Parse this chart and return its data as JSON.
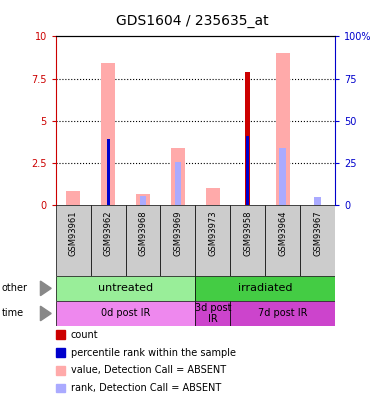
{
  "title": "GDS1604 / 235635_at",
  "samples": [
    "GSM93961",
    "GSM93962",
    "GSM93968",
    "GSM93969",
    "GSM93973",
    "GSM93958",
    "GSM93964",
    "GSM93967"
  ],
  "count_values": [
    0,
    0,
    0,
    0,
    0,
    7.9,
    0,
    0
  ],
  "percentile_rank_values": [
    0,
    39,
    0,
    0,
    0,
    41,
    0,
    0
  ],
  "value_absent_values": [
    0.85,
    8.4,
    0.65,
    3.4,
    1.0,
    0,
    9.0,
    0
  ],
  "rank_absent_values": [
    0,
    0,
    5.5,
    25.5,
    0,
    0,
    33.5,
    5.0
  ],
  "ylim": [
    0,
    10
  ],
  "y2lim": [
    0,
    100
  ],
  "yticks": [
    0,
    2.5,
    5,
    7.5,
    10
  ],
  "y2ticks": [
    0,
    25,
    50,
    75,
    100
  ],
  "ytick_labels": [
    "0",
    "2.5",
    "5",
    "7.5",
    "10"
  ],
  "y2tick_labels": [
    "0",
    "25",
    "50",
    "75",
    "100%"
  ],
  "color_count": "#cc0000",
  "color_rank": "#0000cc",
  "color_value_absent": "#ffaaaa",
  "color_rank_absent": "#aaaaff",
  "group_other": [
    {
      "label": "untreated",
      "start": 0,
      "end": 4,
      "color": "#99ee99"
    },
    {
      "label": "irradiated",
      "start": 4,
      "end": 8,
      "color": "#44cc44"
    }
  ],
  "group_time": [
    {
      "label": "0d post IR",
      "start": 0,
      "end": 4,
      "color": "#ee88ee"
    },
    {
      "label": "3d post\nIR",
      "start": 4,
      "end": 5,
      "color": "#cc44cc"
    },
    {
      "label": "7d post IR",
      "start": 5,
      "end": 8,
      "color": "#cc44cc"
    }
  ],
  "legend_items": [
    {
      "label": "count",
      "color": "#cc0000"
    },
    {
      "label": "percentile rank within the sample",
      "color": "#0000cc"
    },
    {
      "label": "value, Detection Call = ABSENT",
      "color": "#ffaaaa"
    },
    {
      "label": "rank, Detection Call = ABSENT",
      "color": "#aaaaff"
    }
  ],
  "background_plot": "#ffffff",
  "background_sample": "#cccccc"
}
